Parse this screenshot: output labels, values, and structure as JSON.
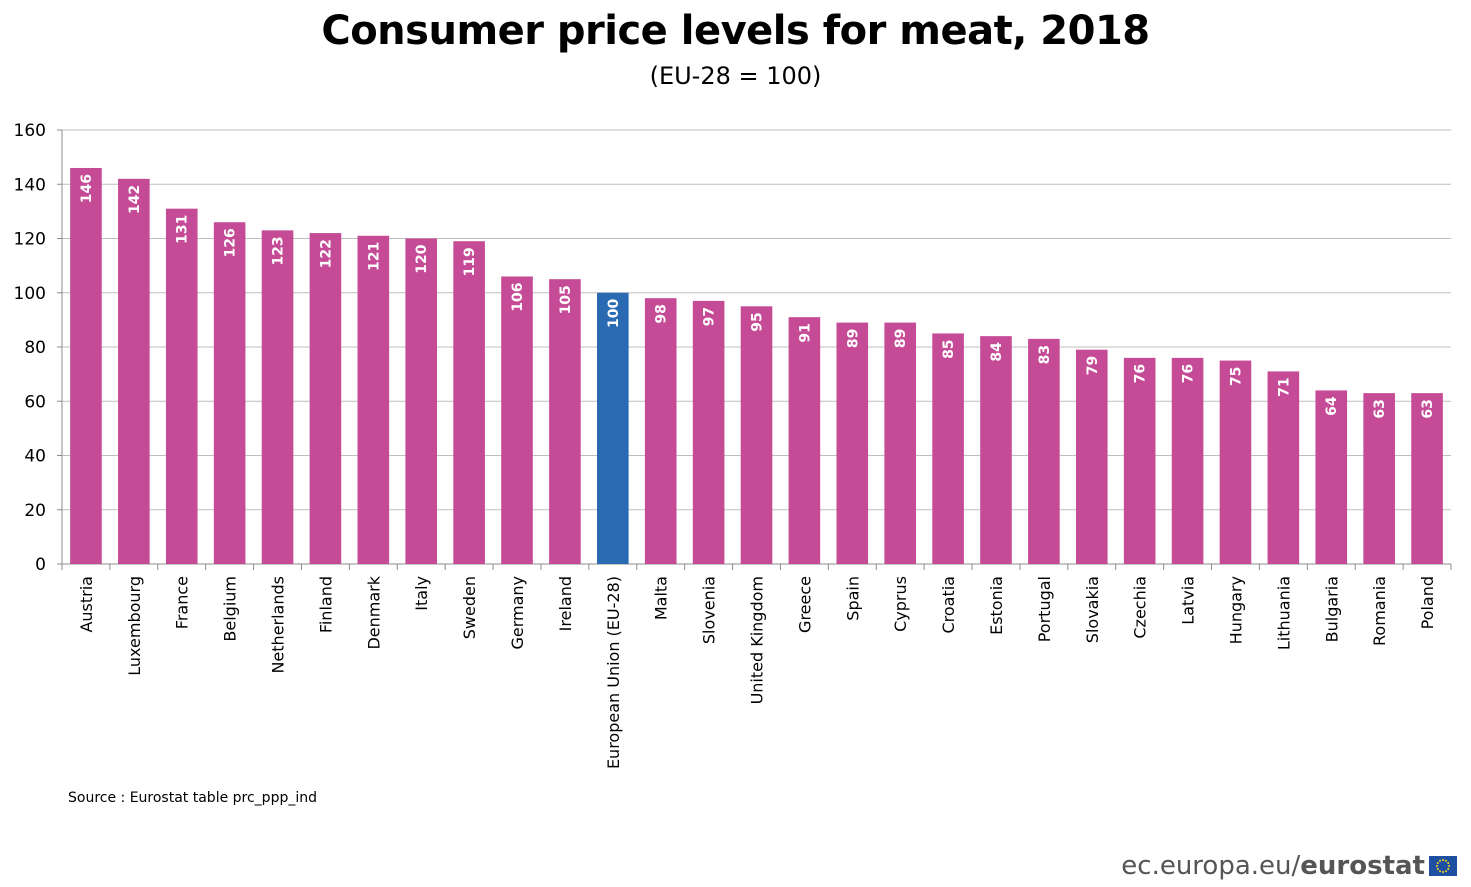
{
  "chart_data": {
    "type": "bar",
    "title": "Consumer price levels for meat, 2018",
    "subtitle": "(EU-28 = 100)",
    "categories": [
      "Austria",
      "Luxembourg",
      "France",
      "Belgium",
      "Netherlands",
      "Finland",
      "Denmark",
      "Italy",
      "Sweden",
      "Germany",
      "Ireland",
      "European Union (EU-28)",
      "Malta",
      "Slovenia",
      "United Kingdom",
      "Greece",
      "Spain",
      "Cyprus",
      "Croatia",
      "Estonia",
      "Portugal",
      "Slovakia",
      "Czechia",
      "Latvia",
      "Hungary",
      "Lithuania",
      "Bulgaria",
      "Romania",
      "Poland"
    ],
    "values": [
      146,
      142,
      131,
      126,
      123,
      122,
      121,
      120,
      119,
      106,
      105,
      100,
      98,
      97,
      95,
      91,
      89,
      89,
      85,
      84,
      83,
      79,
      76,
      76,
      75,
      71,
      64,
      63,
      63
    ],
    "highlight_category": "European Union (EU-28)",
    "ylim": [
      0,
      160
    ],
    "yticks": [
      0,
      20,
      40,
      60,
      80,
      100,
      120,
      140,
      160
    ],
    "xlabel": "",
    "ylabel": "",
    "grid": true,
    "legend": "none",
    "data_labels": true
  },
  "colors": {
    "bar": "#C64B96",
    "highlight_bar": "#2A6AB3",
    "grid": "#BFBFBF",
    "axis": "#8C8C8C",
    "label_inside": "#FFFFFF"
  },
  "source": "Source : Eurostat table prc_ppp_ind",
  "brand": {
    "url": "ec.europa.eu/",
    "name": "eurostat",
    "flag_icon": "eu-flag-icon"
  }
}
